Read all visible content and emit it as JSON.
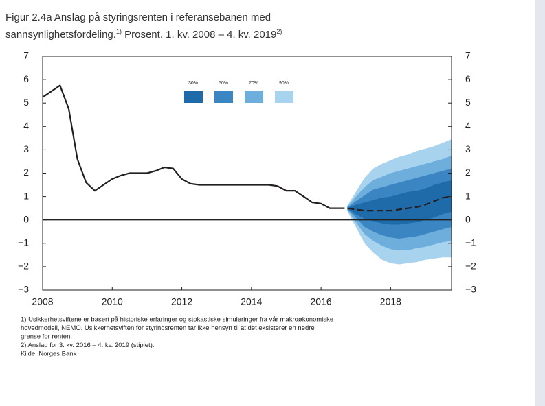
{
  "chart_data": {
    "type": "fan",
    "title_line1": "Figur 2.4a Anslag på styringsrenten i referansebanen med",
    "title_line2": "sannsynlighetsfordeling.",
    "title_sup1": "1)",
    "title_rest": " Prosent. 1. kv. 2008 – 4. kv. 2019",
    "title_sup2": "2)",
    "xlim": [
      2008,
      2019.75
    ],
    "xticks": [
      2008,
      2010,
      2012,
      2014,
      2016,
      2018
    ],
    "ylim": [
      -3,
      7
    ],
    "yticks": [
      {
        "value": -3,
        "label": "−3"
      },
      {
        "value": -2,
        "label": "−2"
      },
      {
        "value": -1,
        "label": "−1"
      },
      0,
      1,
      2,
      3,
      4,
      5,
      6,
      7
    ],
    "history": {
      "color": "#231f20",
      "x": [
        2008,
        2008.25,
        2008.5,
        2008.75,
        2009,
        2009.25,
        2009.5,
        2009.75,
        2010,
        2010.25,
        2010.5,
        2010.75,
        2011,
        2011.25,
        2011.5,
        2011.75,
        2012,
        2012.25,
        2012.5,
        2012.75,
        2013,
        2013.25,
        2013.5,
        2013.75,
        2014,
        2014.25,
        2014.5,
        2014.75,
        2015,
        2015.25,
        2015.5,
        2015.75,
        2016,
        2016.25,
        2016.5
      ],
      "values": [
        5.25,
        5.5,
        5.75,
        4.75,
        2.6,
        1.6,
        1.25,
        1.5,
        1.75,
        1.9,
        2.0,
        2.0,
        2.0,
        2.1,
        2.25,
        2.2,
        1.75,
        1.55,
        1.5,
        1.5,
        1.5,
        1.5,
        1.5,
        1.5,
        1.5,
        1.5,
        1.5,
        1.45,
        1.25,
        1.25,
        1.0,
        0.75,
        0.7,
        0.5,
        0.5
      ]
    },
    "forecast": {
      "color": "#231f20",
      "x": [
        2016.5,
        2016.75,
        2017,
        2017.25,
        2017.5,
        2017.75,
        2018,
        2018.25,
        2018.5,
        2018.75,
        2019,
        2019.25,
        2019.5,
        2019.75
      ],
      "values": [
        0.5,
        0.5,
        0.45,
        0.4,
        0.4,
        0.4,
        0.4,
        0.45,
        0.5,
        0.55,
        0.65,
        0.8,
        0.95,
        1.0
      ]
    },
    "band_x": [
      2016.75,
      2017,
      2017.25,
      2017.5,
      2017.75,
      2018,
      2018.25,
      2018.5,
      2018.75,
      2019,
      2019.25,
      2019.5,
      2019.75
    ],
    "bands": [
      {
        "name": "30%",
        "color": "#1f6aa8",
        "upper": [
          0.51,
          0.65,
          0.75,
          0.85,
          0.95,
          1.0,
          1.1,
          1.2,
          1.25,
          1.35,
          1.5,
          1.6,
          1.7
        ],
        "lower": [
          0.49,
          0.25,
          0.05,
          -0.05,
          -0.15,
          -0.2,
          -0.2,
          -0.15,
          -0.1,
          0.0,
          0.1,
          0.25,
          0.35
        ]
      },
      {
        "name": "50%",
        "color": "#3b86c2",
        "upper": [
          0.52,
          0.8,
          1.05,
          1.3,
          1.4,
          1.5,
          1.6,
          1.7,
          1.8,
          1.9,
          2.0,
          2.1,
          2.2
        ],
        "lower": [
          0.48,
          0.1,
          -0.3,
          -0.5,
          -0.65,
          -0.75,
          -0.8,
          -0.75,
          -0.7,
          -0.6,
          -0.5,
          -0.4,
          -0.3
        ]
      },
      {
        "name": "70%",
        "color": "#6eaedc",
        "upper": [
          0.55,
          1.0,
          1.4,
          1.7,
          1.85,
          2.0,
          2.1,
          2.2,
          2.3,
          2.4,
          2.5,
          2.6,
          2.75
        ],
        "lower": [
          0.45,
          -0.1,
          -0.6,
          -0.9,
          -1.1,
          -1.25,
          -1.3,
          -1.3,
          -1.2,
          -1.15,
          -1.05,
          -0.95,
          -0.9
        ]
      },
      {
        "name": "90%",
        "color": "#a8d3ef",
        "upper": [
          0.6,
          1.2,
          1.8,
          2.2,
          2.4,
          2.55,
          2.7,
          2.8,
          2.95,
          3.05,
          3.15,
          3.3,
          3.45
        ],
        "lower": [
          0.4,
          -0.3,
          -1.0,
          -1.4,
          -1.7,
          -1.85,
          -1.9,
          -1.85,
          -1.8,
          -1.7,
          -1.65,
          -1.6,
          -1.6
        ]
      }
    ],
    "footnotes": [
      "1) Usikkerhetsviftene er basert på historiske erfaringer og stokastiske simuleringer fra vår makroøkonomiske",
      "hovedmodell, NEMO. Usikkerhetsviften for styringsrenten tar ikke hensyn til at det eksisterer en nedre",
      "grense for renten.",
      "2) Anslag for 3. kv. 2016 – 4. kv. 2019 (stiplet).",
      "Kilde: Norges Bank"
    ]
  }
}
